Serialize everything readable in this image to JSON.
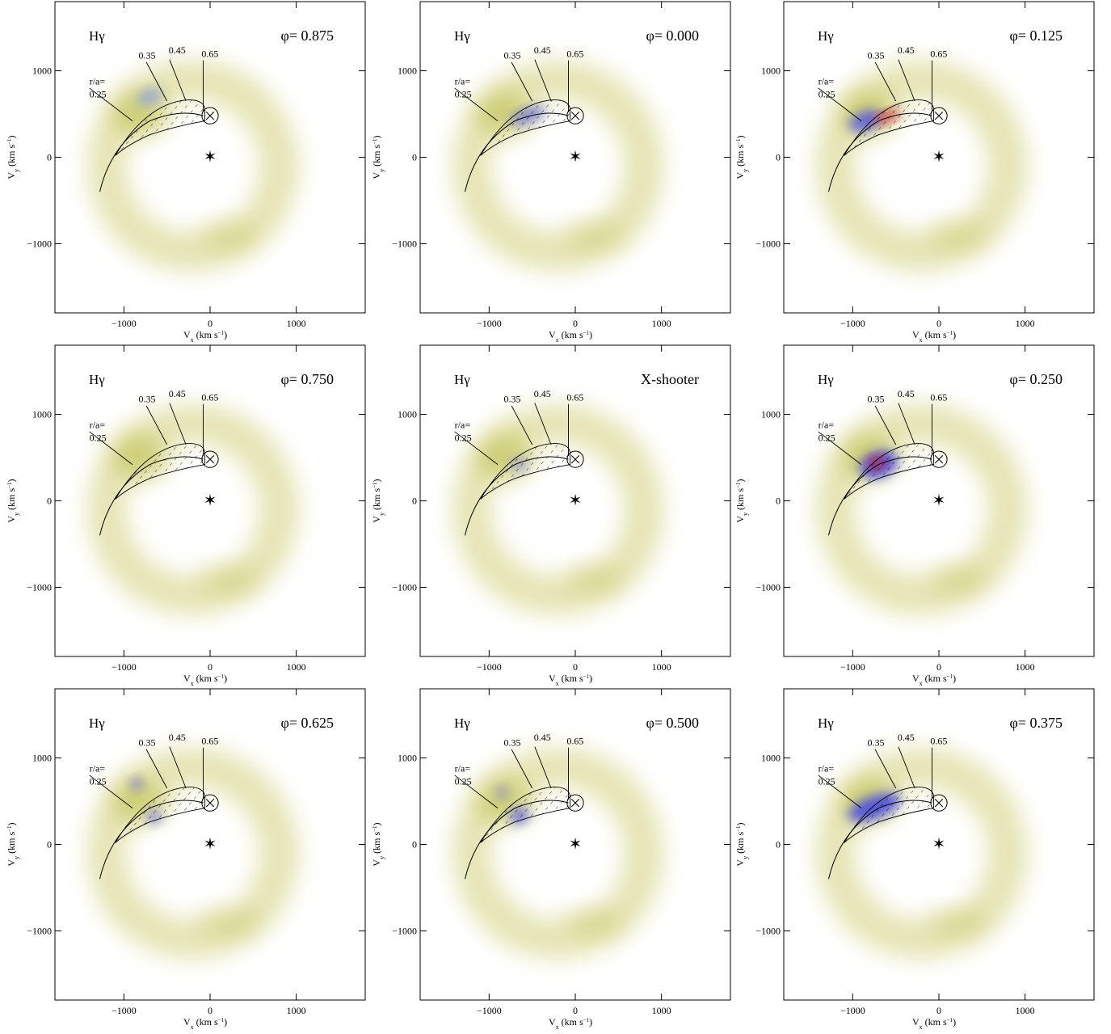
{
  "chart_data": [
    {
      "type": "doppler-map",
      "line": "Hγ",
      "label": "φ= 0.875",
      "annotations": [
        "r/a=",
        "0.25",
        "0.35",
        "0.45",
        "0.65"
      ],
      "xlabel": [
        "V",
        "x",
        " (km s",
        "−1",
        ")"
      ],
      "ylabel": [
        "V",
        "y",
        " (km s",
        "−1",
        ")"
      ],
      "xlim": [
        -1800,
        1800
      ],
      "ylim": [
        -1800,
        1800
      ],
      "xticks": [
        {
          "value": -1000,
          "label": "−1000"
        },
        0,
        1000
      ],
      "yticks": [
        {
          "value": -1000,
          "label": "−1000"
        },
        0,
        1000
      ]
    },
    {
      "type": "doppler-map",
      "line": "Hγ",
      "label": "φ= 0.000",
      "annotations": [
        "r/a=",
        "0.25",
        "0.35",
        "0.45",
        "0.65"
      ],
      "xlabel": [
        "V",
        "x",
        " (km s",
        "−1",
        ")"
      ],
      "ylabel": [
        "V",
        "y",
        " (km s",
        "−1",
        ")"
      ],
      "xlim": [
        -1800,
        1800
      ],
      "ylim": [
        -1800,
        1800
      ],
      "xticks": [
        {
          "value": -1000,
          "label": "−1000"
        },
        0,
        1000
      ],
      "yticks": [
        {
          "value": -1000,
          "label": "−1000"
        },
        0,
        1000
      ]
    },
    {
      "type": "doppler-map",
      "line": "Hγ",
      "label": "φ= 0.125",
      "annotations": [
        "r/a=",
        "0.25",
        "0.35",
        "0.45",
        "0.65"
      ],
      "xlabel": [
        "V",
        "x",
        " (km s",
        "−1",
        ")"
      ],
      "ylabel": [
        "V",
        "y",
        " (km s",
        "−1",
        ")"
      ],
      "xlim": [
        -1800,
        1800
      ],
      "ylim": [
        -1800,
        1800
      ],
      "xticks": [
        {
          "value": -1000,
          "label": "−1000"
        },
        0,
        1000
      ],
      "yticks": [
        {
          "value": -1000,
          "label": "−1000"
        },
        0,
        1000
      ]
    },
    {
      "type": "doppler-map",
      "line": "Hγ",
      "label": "φ= 0.750",
      "annotations": [
        "r/a=",
        "0.25",
        "0.35",
        "0.45",
        "0.65"
      ],
      "xlabel": [
        "V",
        "x",
        " (km s",
        "−1",
        ")"
      ],
      "ylabel": [
        "V",
        "y",
        " (km s",
        "−1",
        ")"
      ],
      "xlim": [
        -1800,
        1800
      ],
      "ylim": [
        -1800,
        1800
      ],
      "xticks": [
        {
          "value": -1000,
          "label": "−1000"
        },
        0,
        1000
      ],
      "yticks": [
        {
          "value": -1000,
          "label": "−1000"
        },
        0,
        1000
      ]
    },
    {
      "type": "doppler-map",
      "line": "Hγ",
      "label": "X-shooter",
      "annotations": [
        "r/a=",
        "0.25",
        "0.35",
        "0.45",
        "0.65"
      ],
      "xlabel": [
        "V",
        "x",
        " (km s",
        "−1",
        ")"
      ],
      "ylabel": [
        "V",
        "y",
        " (km s",
        "−1",
        ")"
      ],
      "xlim": [
        -1800,
        1800
      ],
      "ylim": [
        -1800,
        1800
      ],
      "xticks": [
        {
          "value": -1000,
          "label": "−1000"
        },
        0,
        1000
      ],
      "yticks": [
        {
          "value": -1000,
          "label": "−1000"
        },
        0,
        1000
      ]
    },
    {
      "type": "doppler-map",
      "line": "Hγ",
      "label": "φ= 0.250",
      "annotations": [
        "r/a=",
        "0.25",
        "0.35",
        "0.45",
        "0.65"
      ],
      "xlabel": [
        "V",
        "x",
        " (km s",
        "−1",
        ")"
      ],
      "ylabel": [
        "V",
        "y",
        " (km s",
        "−1",
        ")"
      ],
      "xlim": [
        -1800,
        1800
      ],
      "ylim": [
        -1800,
        1800
      ],
      "xticks": [
        {
          "value": -1000,
          "label": "−1000"
        },
        0,
        1000
      ],
      "yticks": [
        {
          "value": -1000,
          "label": "−1000"
        },
        0,
        1000
      ]
    },
    {
      "type": "doppler-map",
      "line": "Hγ",
      "label": "φ= 0.625",
      "annotations": [
        "r/a=",
        "0.25",
        "0.35",
        "0.45",
        "0.65"
      ],
      "xlabel": [
        "V",
        "x",
        " (km s",
        "−1",
        ")"
      ],
      "ylabel": [
        "V",
        "y",
        " (km s",
        "−1",
        ")"
      ],
      "xlim": [
        -1800,
        1800
      ],
      "ylim": [
        -1800,
        1800
      ],
      "xticks": [
        {
          "value": -1000,
          "label": "−1000"
        },
        0,
        1000
      ],
      "yticks": [
        {
          "value": -1000,
          "label": "−1000"
        },
        0,
        1000
      ]
    },
    {
      "type": "doppler-map",
      "line": "Hγ",
      "label": "φ= 0.500",
      "annotations": [
        "r/a=",
        "0.25",
        "0.35",
        "0.45",
        "0.65"
      ],
      "xlabel": [
        "V",
        "x",
        " (km s",
        "−1",
        ")"
      ],
      "ylabel": [
        "V",
        "y",
        " (km s",
        "−1",
        ")"
      ],
      "xlim": [
        -1800,
        1800
      ],
      "ylim": [
        -1800,
        1800
      ],
      "xticks": [
        {
          "value": -1000,
          "label": "−1000"
        },
        0,
        1000
      ],
      "yticks": [
        {
          "value": -1000,
          "label": "−1000"
        },
        0,
        1000
      ]
    },
    {
      "type": "doppler-map",
      "line": "Hγ",
      "label": "φ= 0.375",
      "annotations": [
        "r/a=",
        "0.25",
        "0.35",
        "0.45",
        "0.65"
      ],
      "xlabel": [
        "V",
        "x",
        " (km s",
        "−1",
        ")"
      ],
      "ylabel": [
        "V",
        "y",
        " (km s",
        "−1",
        ")"
      ],
      "xlim": [
        -1800,
        1800
      ],
      "ylim": [
        -1800,
        1800
      ],
      "xticks": [
        {
          "value": -1000,
          "label": "−1000"
        },
        0,
        1000
      ],
      "yticks": [
        {
          "value": -1000,
          "label": "−1000"
        },
        0,
        1000
      ]
    }
  ]
}
